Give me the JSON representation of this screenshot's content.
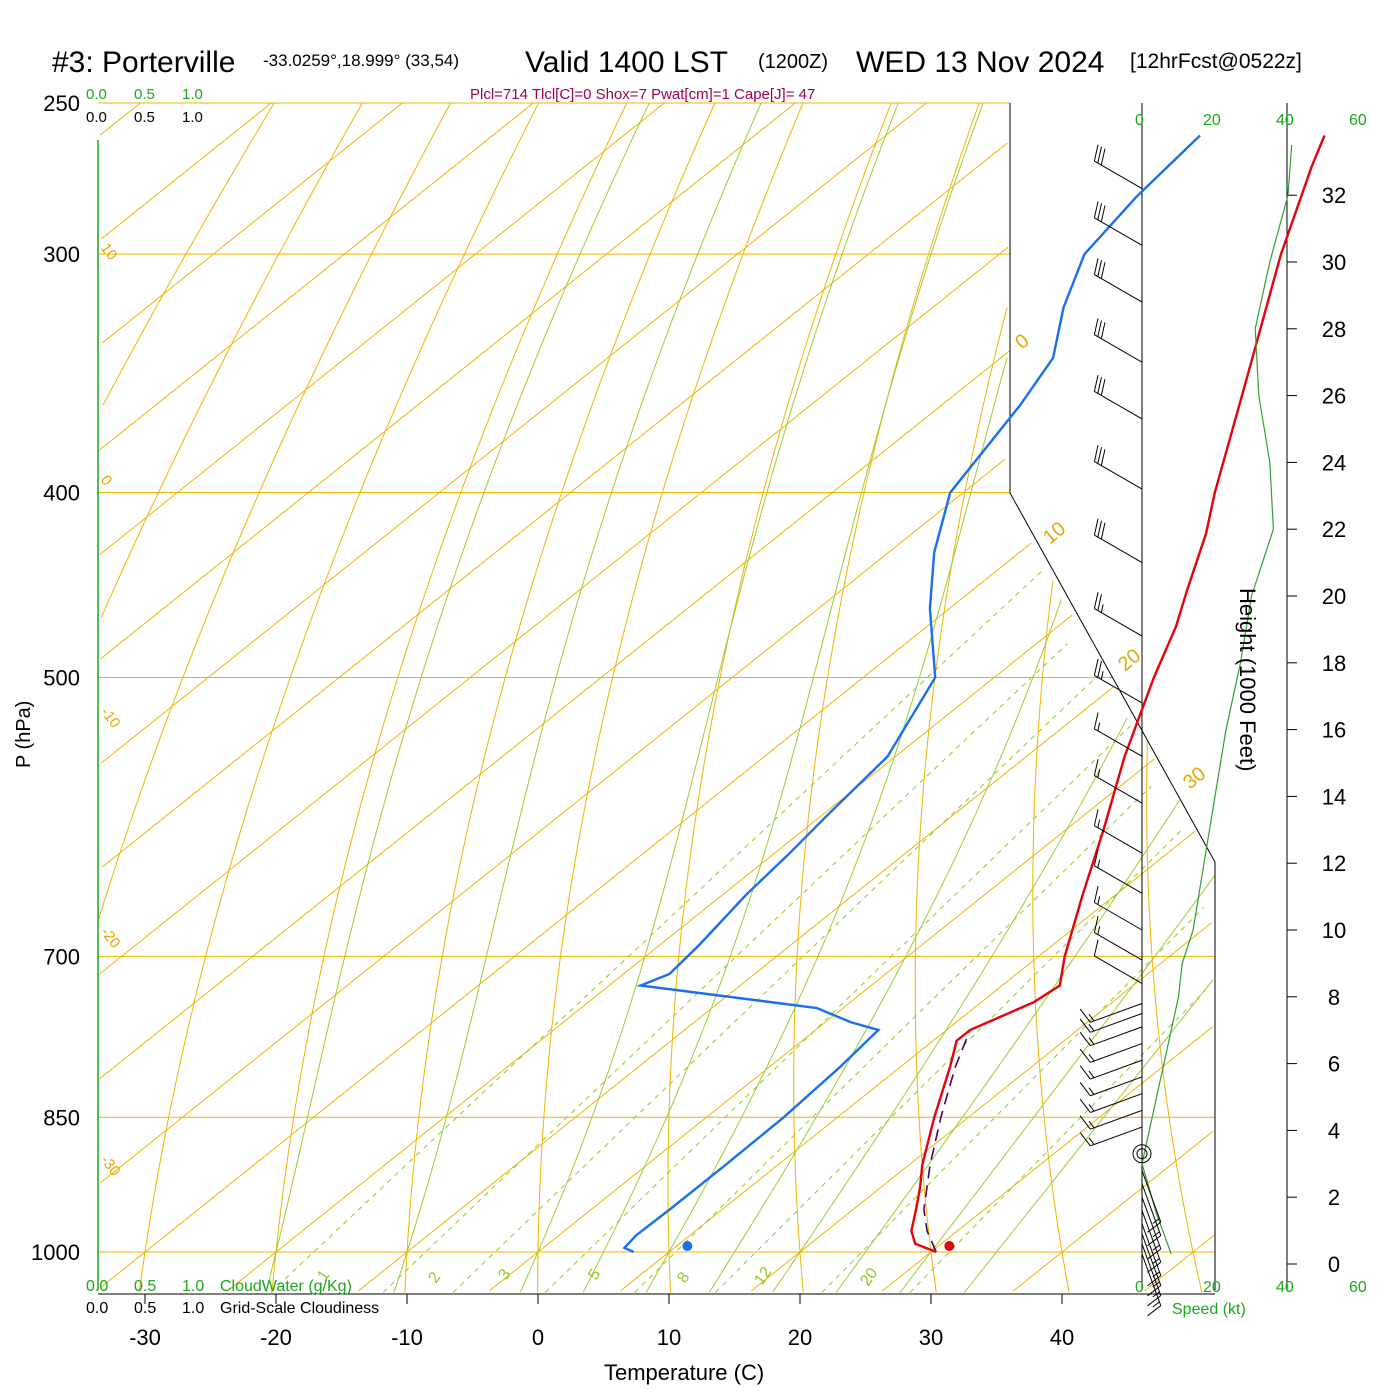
{
  "header": {
    "station": "#3: Porterville",
    "coords": "-33.0259°,18.999° (33,54)",
    "valid": "Valid 1400 LST",
    "utc": "(1200Z)",
    "date": "WED 13 Nov 2024",
    "forecast": "[12hrFcst@0522z]"
  },
  "indices": "Plcl=714 Tlcl[C]=0 Shox=7 Pwat[cm]=1 Cape[J]= 47",
  "cloud_scale": {
    "green_ticks": [
      "0.0",
      "0.5",
      "1.0"
    ],
    "black_ticks": [
      "0.0",
      "0.5",
      "1.0"
    ],
    "cloudwater_label": "CloudWater (g/Kg)",
    "cloudiness_label": "Grid-Scale Cloudiness"
  },
  "speed_scale": {
    "ticks": [
      "0",
      "20",
      "40",
      "60"
    ],
    "label": "Speed (kt)"
  },
  "height_axis": {
    "label": "Height (1000 Feet)",
    "ticks": [
      "0",
      "2",
      "4",
      "6",
      "8",
      "10",
      "12",
      "14",
      "16",
      "18",
      "20",
      "22",
      "24",
      "26",
      "28",
      "30",
      "32"
    ]
  },
  "chart_data": {
    "type": "skew-t",
    "xlabel": "Temperature (C)",
    "ylabel": "P (hPa)",
    "xlim": [
      -30,
      40
    ],
    "x_ticks": [
      -30,
      -20,
      -10,
      0,
      10,
      20,
      30,
      40
    ],
    "p_ticks": [
      250,
      300,
      400,
      500,
      700,
      850,
      1000
    ],
    "isotherm_labels": [
      "10",
      "0",
      "-10",
      "-20",
      "-30"
    ],
    "dry_adiabat_labels": [
      "0",
      "10",
      "20",
      "30"
    ],
    "mixing_ratio_labels": [
      "1",
      "2",
      "3",
      "5",
      "8",
      "12",
      "20"
    ],
    "temperature": {
      "name": "Temperature",
      "color": "#e8000b",
      "points": [
        {
          "p": 1000,
          "t": 30.4
        },
        {
          "p": 990,
          "t": 28.0
        },
        {
          "p": 975,
          "t": 26.5
        },
        {
          "p": 950,
          "t": 24.8
        },
        {
          "p": 925,
          "t": 23.0
        },
        {
          "p": 900,
          "t": 21.0
        },
        {
          "p": 850,
          "t": 17.4
        },
        {
          "p": 800,
          "t": 13.8
        },
        {
          "p": 775,
          "t": 11.8
        },
        {
          "p": 765,
          "t": 11.8
        },
        {
          "p": 740,
          "t": 14.0
        },
        {
          "p": 725,
          "t": 14.4
        },
        {
          "p": 700,
          "t": 12.0
        },
        {
          "p": 650,
          "t": 7.5
        },
        {
          "p": 600,
          "t": 2.8
        },
        {
          "p": 550,
          "t": -2.5
        },
        {
          "p": 500,
          "t": -7.8
        },
        {
          "p": 470,
          "t": -11.0
        },
        {
          "p": 450,
          "t": -13.6
        },
        {
          "p": 420,
          "t": -17.6
        },
        {
          "p": 400,
          "t": -20.8
        },
        {
          "p": 350,
          "t": -29.0
        },
        {
          "p": 300,
          "t": -38.5
        },
        {
          "p": 270,
          "t": -44.5
        },
        {
          "p": 260,
          "t": -46.5
        }
      ]
    },
    "dewpoint": {
      "name": "Dewpoint",
      "color": "#1a6ef0",
      "points": [
        {
          "p": 1000,
          "t": 7.3
        },
        {
          "p": 995,
          "t": 6.2
        },
        {
          "p": 980,
          "t": 5.9
        },
        {
          "p": 950,
          "t": 6.0
        },
        {
          "p": 900,
          "t": 6.0
        },
        {
          "p": 850,
          "t": 5.9
        },
        {
          "p": 800,
          "t": 5.4
        },
        {
          "p": 765,
          "t": 4.8
        },
        {
          "p": 758,
          "t": 2.0
        },
        {
          "p": 745,
          "t": -2.0
        },
        {
          "p": 725,
          "t": -17.6
        },
        {
          "p": 715,
          "t": -16.5
        },
        {
          "p": 690,
          "t": -17.0
        },
        {
          "p": 650,
          "t": -18.2
        },
        {
          "p": 620,
          "t": -18.8
        },
        {
          "p": 590,
          "t": -19.6
        },
        {
          "p": 550,
          "t": -20.6
        },
        {
          "p": 500,
          "t": -24.5
        },
        {
          "p": 460,
          "t": -31.5
        },
        {
          "p": 430,
          "t": -36.5
        },
        {
          "p": 400,
          "t": -41.0
        },
        {
          "p": 360,
          "t": -44.0
        },
        {
          "p": 340,
          "t": -46.0
        },
        {
          "p": 320,
          "t": -50.0
        },
        {
          "p": 300,
          "t": -53.5
        },
        {
          "p": 280,
          "t": -55.0
        },
        {
          "p": 260,
          "t": -56.0
        }
      ]
    },
    "parcel": {
      "name": "Parcel",
      "color": "#4d0060",
      "points": [
        {
          "p": 1000,
          "t": 30.4
        },
        {
          "p": 975,
          "t": 27.7
        },
        {
          "p": 950,
          "t": 25.4
        },
        {
          "p": 900,
          "t": 21.6
        },
        {
          "p": 850,
          "t": 17.9
        },
        {
          "p": 800,
          "t": 14.2
        },
        {
          "p": 765,
          "t": 11.8
        }
      ]
    },
    "surface_temperature_marker": {
      "p": 1000,
      "t": 31.4,
      "color": "#e8000b"
    },
    "surface_dewpoint_marker": {
      "p": 1000,
      "t": 11.4,
      "color": "#1a6ef0"
    },
    "wind_speed_profile": {
      "name": "Speed (kt)",
      "color": "#2fa02f",
      "points": [
        {
          "h": 0.3,
          "s": 8
        },
        {
          "h": 1.5,
          "s": 4
        },
        {
          "h": 3,
          "s": 0
        },
        {
          "h": 4,
          "s": 2
        },
        {
          "h": 5,
          "s": 4
        },
        {
          "h": 6,
          "s": 6
        },
        {
          "h": 7,
          "s": 8
        },
        {
          "h": 8,
          "s": 10
        },
        {
          "h": 9,
          "s": 11
        },
        {
          "h": 10,
          "s": 14
        },
        {
          "h": 12,
          "s": 17
        },
        {
          "h": 14,
          "s": 20
        },
        {
          "h": 16,
          "s": 23
        },
        {
          "h": 18,
          "s": 27
        },
        {
          "h": 20,
          "s": 30
        },
        {
          "h": 22,
          "s": 36
        },
        {
          "h": 24,
          "s": 35
        },
        {
          "h": 26,
          "s": 32
        },
        {
          "h": 28,
          "s": 31
        },
        {
          "h": 30,
          "s": 35
        },
        {
          "h": 32,
          "s": 40
        },
        {
          "h": 33.5,
          "s": 41
        }
      ]
    },
    "wind_barbs": [
      {
        "h": 0.3,
        "dir": 160,
        "spd": 15
      },
      {
        "h": 0.6,
        "dir": 160,
        "spd": 15
      },
      {
        "h": 0.9,
        "dir": 160,
        "spd": 15
      },
      {
        "h": 1.2,
        "dir": 160,
        "spd": 15
      },
      {
        "h": 1.6,
        "dir": 160,
        "spd": 15
      },
      {
        "h": 2.0,
        "dir": 160,
        "spd": 15
      },
      {
        "h": 2.4,
        "dir": 160,
        "spd": 15
      },
      {
        "h": 2.8,
        "dir": 160,
        "spd": 15
      },
      {
        "h": 3.3,
        "dir": 0,
        "spd": 0
      },
      {
        "h": 4.1,
        "dir": 250,
        "spd": 15
      },
      {
        "h": 4.6,
        "dir": 250,
        "spd": 15
      },
      {
        "h": 5.1,
        "dir": 250,
        "spd": 15
      },
      {
        "h": 5.6,
        "dir": 250,
        "spd": 15
      },
      {
        "h": 6.1,
        "dir": 250,
        "spd": 15
      },
      {
        "h": 6.6,
        "dir": 250,
        "spd": 15
      },
      {
        "h": 7.1,
        "dir": 250,
        "spd": 15
      },
      {
        "h": 7.5,
        "dir": 250,
        "spd": 15
      },
      {
        "h": 7.8,
        "dir": 250,
        "spd": 15
      },
      {
        "h": 8.4,
        "dir": 300,
        "spd": 10
      },
      {
        "h": 9.1,
        "dir": 300,
        "spd": 15
      },
      {
        "h": 10.0,
        "dir": 300,
        "spd": 15
      },
      {
        "h": 11.1,
        "dir": 300,
        "spd": 15
      },
      {
        "h": 12.3,
        "dir": 300,
        "spd": 15
      },
      {
        "h": 13.8,
        "dir": 300,
        "spd": 15
      },
      {
        "h": 15.2,
        "dir": 300,
        "spd": 15
      },
      {
        "h": 16.8,
        "dir": 300,
        "spd": 25
      },
      {
        "h": 18.8,
        "dir": 300,
        "spd": 25
      },
      {
        "h": 21.0,
        "dir": 300,
        "spd": 30
      },
      {
        "h": 23.2,
        "dir": 300,
        "spd": 30
      },
      {
        "h": 25.3,
        "dir": 300,
        "spd": 30
      },
      {
        "h": 27.0,
        "dir": 300,
        "spd": 30
      },
      {
        "h": 28.8,
        "dir": 300,
        "spd": 30
      },
      {
        "h": 30.5,
        "dir": 300,
        "spd": 30
      },
      {
        "h": 32.2,
        "dir": 300,
        "spd": 30
      }
    ]
  }
}
